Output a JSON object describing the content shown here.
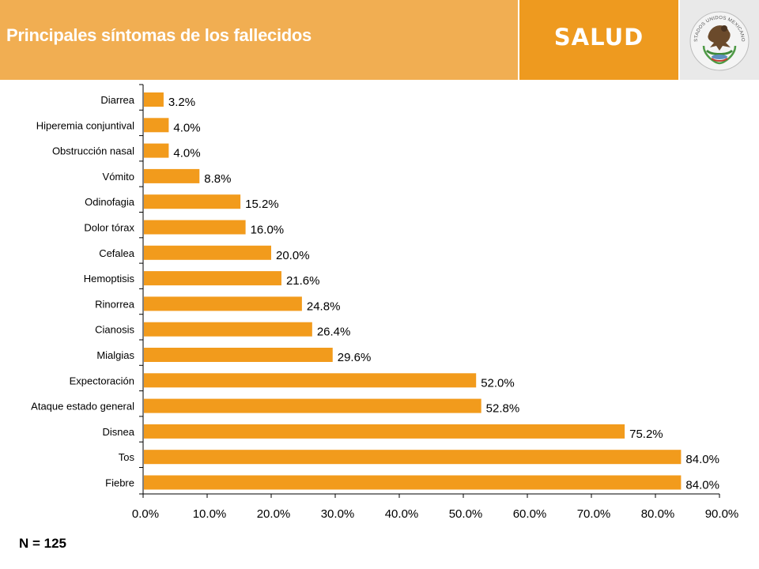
{
  "header": {
    "title": "Principales síntomas de los fallecidos",
    "brand": "SALUD",
    "seal_text": "ESTADOS UNIDOS MEXICANOS",
    "seal_icon": "mexican-coat-of-arms-seal-icon"
  },
  "footnote": "N = 125",
  "colors": {
    "title_band": "#f1ae52",
    "brand_band": "#ee9a1f",
    "seal_band": "#e9e9e9",
    "bar": "#f29b1c"
  },
  "chart_data": {
    "type": "bar",
    "orientation": "horizontal",
    "categories": [
      "Diarrea",
      "Hiperemia conjuntival",
      "Obstrucción nasal",
      "Vómito",
      "Odinofagia",
      "Dolor tórax",
      "Cefalea",
      "Hemoptisis",
      "Rinorrea",
      "Cianosis",
      "Mialgias",
      "Expectoración",
      "Ataque estado general",
      "Disnea",
      "Tos",
      "Fiebre"
    ],
    "values": [
      3.2,
      4.0,
      4.0,
      8.8,
      15.2,
      16.0,
      20.0,
      21.6,
      24.8,
      26.4,
      29.6,
      52.0,
      52.8,
      75.2,
      84.0,
      84.0
    ],
    "data_labels": [
      "3.2%",
      "4.0%",
      "4.0%",
      "8.8%",
      "15.2%",
      "16.0%",
      "20.0%",
      "21.6%",
      "24.8%",
      "26.4%",
      "29.6%",
      "52.0%",
      "52.8%",
      "75.2%",
      "84.0%",
      "84.0%"
    ],
    "xlim": [
      0,
      90
    ],
    "x_ticks": [
      "0.0%",
      "10.0%",
      "20.0%",
      "30.0%",
      "40.0%",
      "50.0%",
      "60.0%",
      "70.0%",
      "80.0%",
      "90.0%"
    ],
    "grid": false,
    "legend": "none",
    "title": "",
    "xlabel": "",
    "ylabel": ""
  }
}
